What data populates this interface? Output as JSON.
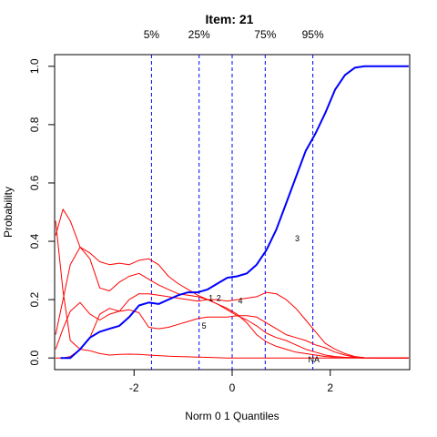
{
  "chart_data": {
    "type": "line",
    "title": "Item:  21",
    "xlabel": "Norm 0 1 Quantiles",
    "ylabel": "Probability",
    "xlim": [
      -3.62,
      3.62
    ],
    "ylim": [
      -0.04,
      1.04
    ],
    "x_ticks": [
      -2,
      0,
      2
    ],
    "x_tick_labels": [
      "-2",
      "0",
      "2"
    ],
    "y_ticks": [
      0.0,
      0.2,
      0.4,
      0.6,
      0.8,
      1.0
    ],
    "y_tick_labels": [
      "0.0",
      "0.2",
      "0.4",
      "0.6",
      "0.8",
      "1.0"
    ],
    "grid": false,
    "quantile_lines": [
      {
        "x": -1.645,
        "label": "5%"
      },
      {
        "x": -0.674,
        "label": "25%"
      },
      {
        "x": 0.0,
        "label": ""
      },
      {
        "x": 0.674,
        "label": "75%"
      },
      {
        "x": 1.645,
        "label": "95%"
      }
    ],
    "colors": {
      "correct": "#0000ff",
      "distractor": "#ff0000",
      "quantile": "#0000ff"
    },
    "series": [
      {
        "label": "3",
        "correct": true,
        "label_at": [
          1.28,
          0.41
        ],
        "x": [
          -3.5,
          -3.3,
          -3.1,
          -2.9,
          -2.7,
          -2.5,
          -2.3,
          -2.1,
          -1.9,
          -1.7,
          -1.5,
          -1.3,
          -1.1,
          -0.9,
          -0.7,
          -0.5,
          -0.3,
          -0.1,
          0.1,
          0.3,
          0.5,
          0.7,
          0.9,
          1.1,
          1.3,
          1.5,
          1.7,
          1.9,
          2.1,
          2.3,
          2.5,
          2.7,
          2.9,
          3.1,
          3.3,
          3.6
        ],
        "values": [
          0.0,
          0.0,
          0.03,
          0.07,
          0.09,
          0.1,
          0.11,
          0.14,
          0.18,
          0.19,
          0.185,
          0.2,
          0.215,
          0.225,
          0.225,
          0.235,
          0.255,
          0.275,
          0.28,
          0.29,
          0.32,
          0.37,
          0.44,
          0.53,
          0.62,
          0.71,
          0.77,
          0.84,
          0.92,
          0.97,
          0.995,
          1.0,
          1.0,
          1.0,
          1.0,
          1.0
        ]
      },
      {
        "label": "1",
        "correct": false,
        "label_at": [
          -0.48,
          0.205
        ],
        "x": [
          -3.6,
          -3.45,
          -3.3,
          -3.1,
          -2.9,
          -2.7,
          -2.5,
          -2.3,
          -2.1,
          -1.9,
          -1.7,
          -1.5,
          -1.3,
          -1.1,
          -0.9,
          -0.7,
          -0.5,
          -0.3,
          -0.1,
          0.1,
          0.3,
          0.5,
          0.7,
          0.9,
          1.1,
          1.3,
          1.5,
          1.7,
          1.9,
          2.1,
          2.3,
          2.5,
          2.7,
          3.0,
          3.6
        ],
        "values": [
          0.42,
          0.51,
          0.47,
          0.38,
          0.36,
          0.33,
          0.32,
          0.325,
          0.32,
          0.335,
          0.34,
          0.32,
          0.28,
          0.255,
          0.235,
          0.215,
          0.2,
          0.185,
          0.17,
          0.15,
          0.12,
          0.08,
          0.055,
          0.04,
          0.03,
          0.02,
          0.015,
          0.01,
          0.005,
          0.003,
          0.002,
          0.001,
          0.0,
          0.0,
          0.0
        ]
      },
      {
        "label": "2",
        "correct": false,
        "label_at": [
          -0.32,
          0.205
        ],
        "x": [
          -3.6,
          -3.45,
          -3.3,
          -3.1,
          -2.9,
          -2.7,
          -2.5,
          -2.3,
          -2.1,
          -1.9,
          -1.7,
          -1.5,
          -1.3,
          -1.1,
          -0.9,
          -0.7,
          -0.5,
          -0.3,
          -0.1,
          0.1,
          0.3,
          0.5,
          0.7,
          0.9,
          1.1,
          1.3,
          1.5,
          1.7,
          1.9,
          2.1,
          2.3,
          2.5,
          2.7,
          3.0,
          3.6
        ],
        "values": [
          0.08,
          0.2,
          0.32,
          0.38,
          0.34,
          0.24,
          0.23,
          0.26,
          0.28,
          0.29,
          0.27,
          0.25,
          0.235,
          0.22,
          0.215,
          0.21,
          0.2,
          0.185,
          0.165,
          0.145,
          0.13,
          0.11,
          0.085,
          0.07,
          0.06,
          0.045,
          0.03,
          0.02,
          0.01,
          0.005,
          0.002,
          0.001,
          0.0,
          0.0,
          0.0
        ]
      },
      {
        "label": "4",
        "correct": false,
        "label_at": [
          0.12,
          0.195
        ],
        "x": [
          -3.6,
          -3.45,
          -3.3,
          -3.1,
          -2.9,
          -2.7,
          -2.5,
          -2.3,
          -2.1,
          -1.9,
          -1.7,
          -1.5,
          -1.3,
          -1.1,
          -0.9,
          -0.7,
          -0.5,
          -0.3,
          -0.1,
          0.1,
          0.3,
          0.5,
          0.7,
          0.9,
          1.1,
          1.3,
          1.5,
          1.7,
          1.9,
          2.1,
          2.3,
          2.5,
          2.7,
          3.0,
          3.6
        ],
        "values": [
          0.47,
          0.23,
          0.06,
          0.03,
          0.07,
          0.15,
          0.17,
          0.16,
          0.2,
          0.22,
          0.22,
          0.215,
          0.21,
          0.205,
          0.2,
          0.195,
          0.2,
          0.2,
          0.195,
          0.2,
          0.205,
          0.21,
          0.225,
          0.22,
          0.2,
          0.17,
          0.13,
          0.09,
          0.05,
          0.03,
          0.015,
          0.005,
          0.001,
          0.0,
          0.0
        ]
      },
      {
        "label": "5",
        "correct": false,
        "label_at": [
          -0.62,
          0.11
        ],
        "x": [
          -3.6,
          -3.45,
          -3.3,
          -3.1,
          -2.9,
          -2.7,
          -2.5,
          -2.3,
          -2.1,
          -1.9,
          -1.7,
          -1.5,
          -1.3,
          -1.1,
          -0.9,
          -0.7,
          -0.5,
          -0.3,
          -0.1,
          0.1,
          0.3,
          0.5,
          0.7,
          0.9,
          1.1,
          1.3,
          1.5,
          1.7,
          1.9,
          2.1,
          2.3,
          2.5,
          2.7,
          3.0,
          3.6
        ],
        "values": [
          0.03,
          0.1,
          0.16,
          0.19,
          0.15,
          0.13,
          0.15,
          0.16,
          0.165,
          0.155,
          0.105,
          0.1,
          0.105,
          0.115,
          0.125,
          0.135,
          0.14,
          0.14,
          0.14,
          0.145,
          0.145,
          0.14,
          0.12,
          0.1,
          0.08,
          0.07,
          0.06,
          0.045,
          0.035,
          0.02,
          0.01,
          0.003,
          0.001,
          0.0,
          0.0
        ]
      },
      {
        "label": "NA",
        "correct": false,
        "label_at": [
          1.55,
          -0.005
        ],
        "x": [
          -3.6,
          -3.45,
          -3.3,
          -3.1,
          -2.9,
          -2.7,
          -2.5,
          -2.3,
          -2.1,
          -1.9,
          -1.7,
          -1.5,
          -1.3,
          -1.1,
          -0.9,
          -0.7,
          -0.5,
          -0.3,
          -0.1,
          0.1,
          0.3,
          0.5,
          0.7,
          0.9,
          1.1,
          1.3,
          1.5,
          1.7,
          1.9,
          2.1,
          2.3,
          2.5,
          2.7,
          3.0,
          3.6
        ],
        "values": [
          0.0,
          0.0,
          0.005,
          0.03,
          0.025,
          0.015,
          0.01,
          0.012,
          0.013,
          0.012,
          0.01,
          0.008,
          0.006,
          0.005,
          0.004,
          0.003,
          0.002,
          0.001,
          0.0,
          0.0,
          0.0,
          0.0,
          0.0,
          0.0,
          0.0,
          0.0,
          0.0,
          0.0,
          0.0,
          0.0,
          0.0,
          0.0,
          0.0,
          0.0,
          0.0
        ]
      }
    ]
  }
}
